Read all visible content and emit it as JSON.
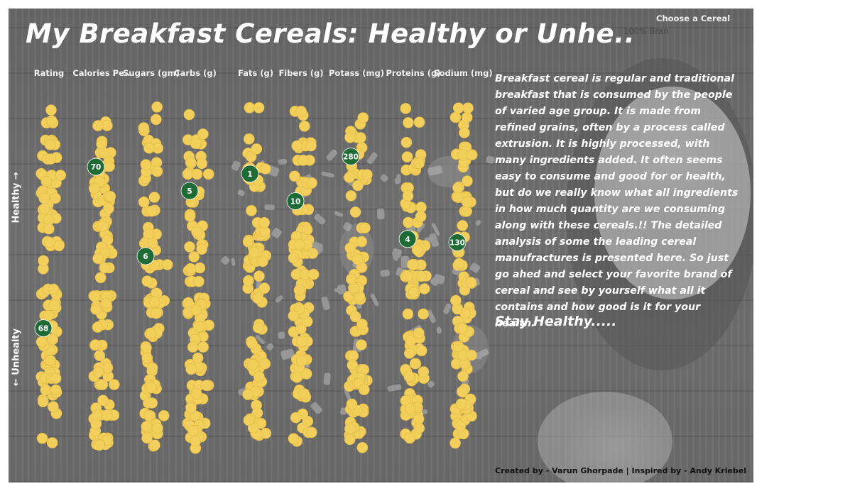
{
  "title": "My Breakfast Cereals: Healthy or Unhe..",
  "selector": {
    "label": "Choose a Cereal",
    "value": "100% Bran"
  },
  "axis_side_labels": {
    "healthy": "Healthy →",
    "unhealthy": "← Unhealty"
  },
  "description": "Breakfast cereal is regular and traditional breakfast that is consumed by the people of varied age group. It is made from refined grains, often by a process called extrusion. It is highly processed, with many ingredients added.  It often seems easy to consume and good for or health, but do we really know what all ingredients in how much quantity are we consuming along with these cereals.!! The detailed analysis of some the leading cereal manufractures is presented here. So just go ahed and select your favorite brand of cereal and see by yourself what all it contains and how good is it for your health.",
  "tagline": "Stay Healthy.....",
  "credits": "Created by - Varun Ghorpade | Inspired by - Andy Kriebel",
  "colors": {
    "dot": "#f2cf5b",
    "highlight": "#1e6b35",
    "background": "#6b6b6b",
    "text": "#ffffff"
  },
  "chart_data": {
    "type": "scatter",
    "description_of_encoding": "one dot per cereal per nutrient column; vertical rank from healthy (top) to unhealthy (bottom)",
    "selected_cereal": "100% Bran",
    "columns": [
      {
        "name": "Rating",
        "selected_value": "68",
        "selected_rank": 0.65
      },
      {
        "name": "Calories Pe..",
        "selected_value": "70",
        "selected_rank": 0.18
      },
      {
        "name": "Sugars (gm)",
        "selected_value": "6",
        "selected_rank": 0.44
      },
      {
        "name": "Carbs (g)",
        "selected_value": "5",
        "selected_rank": 0.25
      },
      {
        "name": "Fats (g)",
        "selected_value": "1",
        "selected_rank": 0.2
      },
      {
        "name": "Fibers (g)",
        "selected_value": "10",
        "selected_rank": 0.28
      },
      {
        "name": "Potass (mg)",
        "selected_value": "280",
        "selected_rank": 0.15
      },
      {
        "name": "Proteins (g)",
        "selected_value": "4",
        "selected_rank": 0.39
      },
      {
        "name": "Sodium (mg)",
        "selected_value": "130",
        "selected_rank": 0.4
      }
    ]
  }
}
